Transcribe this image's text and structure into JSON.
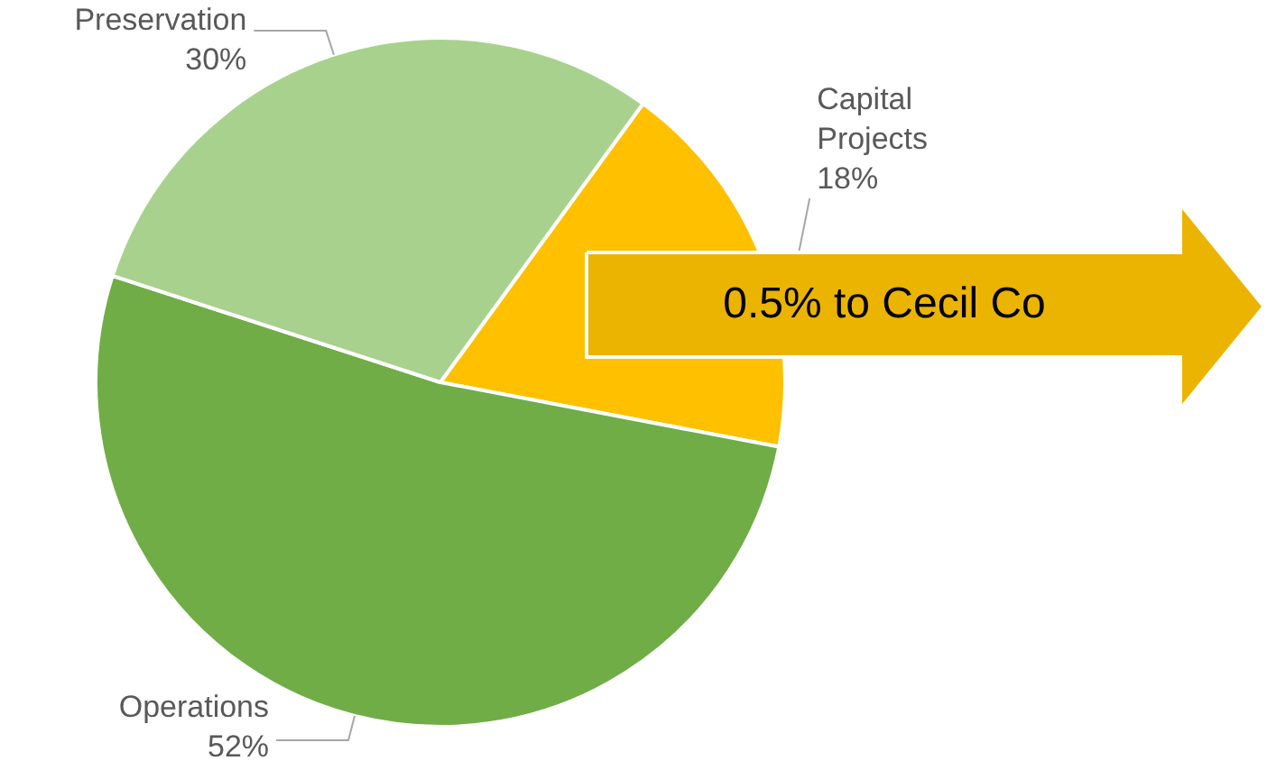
{
  "chart_data": {
    "type": "pie",
    "categories": [
      "Capital Projects",
      "Operations",
      "Preservation"
    ],
    "values": [
      18,
      52,
      30
    ],
    "value_labels": [
      "18%",
      "52%",
      "30%"
    ],
    "colors": [
      "#ffc000",
      "#70ad47",
      "#a9d18e"
    ],
    "annotations": [
      "0.5% to Cecil Co"
    ]
  }
}
